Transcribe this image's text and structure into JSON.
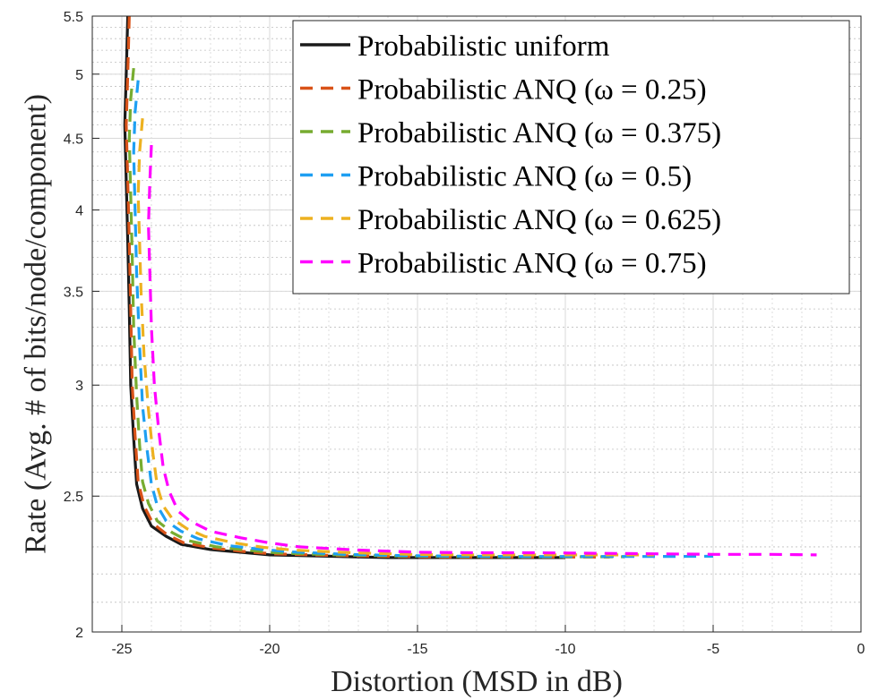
{
  "chart_data": {
    "type": "line",
    "xlabel": "Distortion (MSD in dB)",
    "ylabel": "Rate (Avg. # of bits/node/component)",
    "xlim": [
      -26,
      0
    ],
    "ylim": [
      2,
      5.5
    ],
    "y_scale": "log",
    "x_ticks": [
      -25,
      -20,
      -15,
      -10,
      -5,
      0
    ],
    "x_tick_labels": [
      "-25",
      "-20",
      "-15",
      "-10",
      "-5",
      "0"
    ],
    "y_ticks": [
      2,
      2.5,
      3,
      3.5,
      4,
      4.5,
      5,
      5.5
    ],
    "y_tick_labels": [
      "2",
      "2.5",
      "3",
      "3.5",
      "4",
      "4.5",
      "5",
      "5.5"
    ],
    "grid": true,
    "legend_position": "top-right",
    "series": [
      {
        "name": "Probabilistic uniform",
        "color": "#1a1a1a",
        "dash": "solid",
        "x": [
          -24.8,
          -24.85,
          -24.9,
          -24.85,
          -24.8,
          -24.75,
          -24.7,
          -24.6,
          -24.5,
          -24.3,
          -24.0,
          -23.5,
          -23.0,
          -22.0,
          -21.0,
          -20.0,
          -18.0,
          -16.0,
          -14.0,
          -12.0,
          -10.0
        ],
        "y": [
          5.5,
          5.0,
          4.6,
          4.2,
          3.8,
          3.4,
          3.0,
          2.75,
          2.55,
          2.45,
          2.38,
          2.34,
          2.31,
          2.29,
          2.28,
          2.27,
          2.265,
          2.26,
          2.26,
          2.26,
          2.26
        ]
      },
      {
        "name": "Probabilistic ANQ (ω = 0.25)",
        "color": "#d95319",
        "dash": "dashed",
        "x": [
          -24.75,
          -24.8,
          -24.85,
          -24.8,
          -24.75,
          -24.7,
          -24.65,
          -24.55,
          -24.45,
          -24.25,
          -23.95,
          -23.45,
          -22.9,
          -21.9,
          -20.9,
          -19.9,
          -17.9,
          -15.9,
          -13.9,
          -11.9,
          -9.9,
          -8.5
        ],
        "y": [
          5.5,
          5.0,
          4.6,
          4.2,
          3.8,
          3.4,
          3.0,
          2.76,
          2.56,
          2.46,
          2.39,
          2.345,
          2.315,
          2.295,
          2.283,
          2.274,
          2.268,
          2.264,
          2.262,
          2.262,
          2.262,
          2.262
        ]
      },
      {
        "name": "Probabilistic ANQ (ω = 0.375)",
        "color": "#77ac30",
        "dash": "dashed",
        "x": [
          -24.6,
          -24.7,
          -24.75,
          -24.7,
          -24.65,
          -24.6,
          -24.5,
          -24.4,
          -24.3,
          -24.1,
          -23.8,
          -23.3,
          -22.8,
          -21.8,
          -20.8,
          -19.8,
          -17.8,
          -15.8,
          -13.8,
          -11.8,
          -9.8,
          -8.0
        ],
        "y": [
          5.05,
          4.8,
          4.5,
          4.1,
          3.7,
          3.3,
          2.95,
          2.72,
          2.56,
          2.47,
          2.4,
          2.355,
          2.325,
          2.3,
          2.288,
          2.278,
          2.27,
          2.266,
          2.264,
          2.263,
          2.263,
          2.263
        ]
      },
      {
        "name": "Probabilistic ANQ (ω = 0.5)",
        "color": "#1e9ff2",
        "dash": "dashed",
        "x": [
          -24.45,
          -24.55,
          -24.6,
          -24.55,
          -24.5,
          -24.4,
          -24.3,
          -24.15,
          -24.0,
          -23.8,
          -23.5,
          -23.0,
          -22.4,
          -21.4,
          -20.4,
          -19.4,
          -17.4,
          -15.4,
          -13.4,
          -11.4,
          -9.4,
          -7.0,
          -5.0
        ],
        "y": [
          4.95,
          4.7,
          4.4,
          4.0,
          3.6,
          3.2,
          2.9,
          2.7,
          2.55,
          2.46,
          2.4,
          2.36,
          2.33,
          2.305,
          2.292,
          2.282,
          2.272,
          2.267,
          2.265,
          2.264,
          2.264,
          2.264,
          2.265
        ]
      },
      {
        "name": "Probabilistic ANQ (ω = 0.625)",
        "color": "#edb120",
        "dash": "dashed",
        "x": [
          -24.3,
          -24.4,
          -24.45,
          -24.4,
          -24.35,
          -24.25,
          -24.1,
          -23.95,
          -23.8,
          -23.6,
          -23.3,
          -22.8,
          -22.2,
          -21.2,
          -20.2,
          -19.2,
          -17.2,
          -15.2,
          -13.2,
          -11.2,
          -9.2,
          -7.0
        ],
        "y": [
          4.65,
          4.4,
          4.1,
          3.8,
          3.5,
          3.15,
          2.88,
          2.68,
          2.54,
          2.46,
          2.41,
          2.37,
          2.34,
          2.315,
          2.298,
          2.288,
          2.278,
          2.272,
          2.27,
          2.27,
          2.27,
          2.27
        ]
      },
      {
        "name": "Probabilistic ANQ (ω = 0.75)",
        "color": "#ff00ff",
        "dash": "dashed",
        "x": [
          -24.0,
          -24.05,
          -24.1,
          -24.05,
          -24.0,
          -23.9,
          -23.75,
          -23.6,
          -23.4,
          -23.1,
          -22.7,
          -22.0,
          -21.0,
          -20.0,
          -19.0,
          -17.0,
          -15.0,
          -13.0,
          -11.0,
          -9.0,
          -7.0,
          -5.0,
          -3.0,
          -1.5
        ],
        "y": [
          4.45,
          4.2,
          3.9,
          3.6,
          3.3,
          3.0,
          2.78,
          2.62,
          2.52,
          2.44,
          2.4,
          2.36,
          2.335,
          2.315,
          2.3,
          2.288,
          2.28,
          2.278,
          2.278,
          2.276,
          2.274,
          2.272,
          2.272,
          2.27
        ]
      }
    ]
  }
}
